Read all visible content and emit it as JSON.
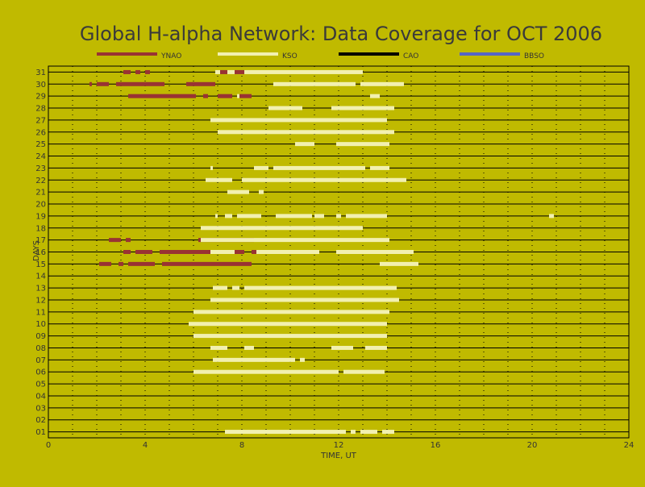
{
  "colors": {
    "background": "#c0ba00",
    "YNAO": "#993333",
    "KSO": "#f2f0b0",
    "CAO": "#000000",
    "BBSO": "#5566c6"
  },
  "chart_data": {
    "type": "bar",
    "title": "Global H-alpha Network: Data Coverage for OCT 2006",
    "xlabel": "TIME, UT",
    "ylabel": "DAYS",
    "xlim": [
      0,
      24
    ],
    "xticks": [
      0,
      4,
      8,
      12,
      16,
      20,
      24
    ],
    "xtick_labels": [
      "0",
      "4",
      "8",
      "12",
      "16",
      "20",
      "24"
    ],
    "ylim": [
      0.5,
      31.5
    ],
    "yticks": [
      1,
      2,
      3,
      4,
      5,
      6,
      7,
      8,
      9,
      10,
      11,
      12,
      13,
      14,
      15,
      16,
      17,
      18,
      19,
      20,
      21,
      22,
      23,
      24,
      25,
      26,
      27,
      28,
      29,
      30,
      31
    ],
    "ytick_labels": [
      "01",
      "02",
      "03",
      "04",
      "05",
      "06",
      "07",
      "08",
      "09",
      "10",
      "11",
      "12",
      "13",
      "14",
      "15",
      "16",
      "17",
      "18",
      "19",
      "20",
      "21",
      "22",
      "23",
      "24",
      "25",
      "26",
      "27",
      "28",
      "29",
      "30",
      "31"
    ],
    "grid": true,
    "legend_position": "top",
    "series": [
      {
        "name": "YNAO",
        "color": "#993333",
        "intervals": [
          {
            "day": 31,
            "start": 3.1,
            "end": 3.4
          },
          {
            "day": 31,
            "start": 3.6,
            "end": 3.8
          },
          {
            "day": 31,
            "start": 4.0,
            "end": 4.2
          },
          {
            "day": 31,
            "start": 7.1,
            "end": 7.4
          },
          {
            "day": 31,
            "start": 7.7,
            "end": 8.1
          },
          {
            "day": 30,
            "start": 1.7,
            "end": 1.8
          },
          {
            "day": 30,
            "start": 2.0,
            "end": 2.5
          },
          {
            "day": 30,
            "start": 2.8,
            "end": 4.8
          },
          {
            "day": 30,
            "start": 5.7,
            "end": 6.9
          },
          {
            "day": 29,
            "start": 3.3,
            "end": 6.1
          },
          {
            "day": 29,
            "start": 6.4,
            "end": 6.6
          },
          {
            "day": 29,
            "start": 7.0,
            "end": 7.6
          },
          {
            "day": 29,
            "start": 7.9,
            "end": 8.4
          },
          {
            "day": 17,
            "start": 2.5,
            "end": 3.0
          },
          {
            "day": 17,
            "start": 3.2,
            "end": 3.4
          },
          {
            "day": 17,
            "start": 6.2,
            "end": 8.5
          },
          {
            "day": 16,
            "start": 3.1,
            "end": 3.4
          },
          {
            "day": 16,
            "start": 3.6,
            "end": 4.3
          },
          {
            "day": 16,
            "start": 4.6,
            "end": 8.1
          },
          {
            "day": 16,
            "start": 8.4,
            "end": 8.6
          },
          {
            "day": 15,
            "start": 2.1,
            "end": 2.6
          },
          {
            "day": 15,
            "start": 2.9,
            "end": 3.1
          },
          {
            "day": 15,
            "start": 3.3,
            "end": 4.4
          },
          {
            "day": 15,
            "start": 4.7,
            "end": 8.4
          }
        ]
      },
      {
        "name": "KSO",
        "color": "#f2f0b0",
        "intervals": [
          {
            "day": 31,
            "start": 6.9,
            "end": 7.1
          },
          {
            "day": 31,
            "start": 7.4,
            "end": 7.7
          },
          {
            "day": 31,
            "start": 8.1,
            "end": 13.0
          },
          {
            "day": 30,
            "start": 9.3,
            "end": 12.7
          },
          {
            "day": 30,
            "start": 12.9,
            "end": 14.7
          },
          {
            "day": 29,
            "start": 7.8,
            "end": 7.9
          },
          {
            "day": 29,
            "start": 13.3,
            "end": 13.7
          },
          {
            "day": 28,
            "start": 9.1,
            "end": 10.5
          },
          {
            "day": 28,
            "start": 11.7,
            "end": 14.3
          },
          {
            "day": 27,
            "start": 6.7,
            "end": 14.0
          },
          {
            "day": 26,
            "start": 7.0,
            "end": 14.3
          },
          {
            "day": 25,
            "start": 10.2,
            "end": 11.0
          },
          {
            "day": 25,
            "start": 11.9,
            "end": 14.1
          },
          {
            "day": 23,
            "start": 6.7,
            "end": 6.8
          },
          {
            "day": 23,
            "start": 8.5,
            "end": 9.1
          },
          {
            "day": 23,
            "start": 9.3,
            "end": 13.1
          },
          {
            "day": 23,
            "start": 13.3,
            "end": 14.1
          },
          {
            "day": 22,
            "start": 6.5,
            "end": 7.6
          },
          {
            "day": 22,
            "start": 8.0,
            "end": 14.8
          },
          {
            "day": 21,
            "start": 7.4,
            "end": 8.3
          },
          {
            "day": 21,
            "start": 8.7,
            "end": 8.9
          },
          {
            "day": 19,
            "start": 6.9,
            "end": 7.0
          },
          {
            "day": 19,
            "start": 7.3,
            "end": 7.6
          },
          {
            "day": 19,
            "start": 7.8,
            "end": 8.8
          },
          {
            "day": 19,
            "start": 9.4,
            "end": 10.9
          },
          {
            "day": 19,
            "start": 11.0,
            "end": 11.4
          },
          {
            "day": 19,
            "start": 11.9,
            "end": 12.1
          },
          {
            "day": 19,
            "start": 12.3,
            "end": 14.0
          },
          {
            "day": 19,
            "start": 20.7,
            "end": 20.9
          },
          {
            "day": 18,
            "start": 6.3,
            "end": 13.0
          },
          {
            "day": 17,
            "start": 6.3,
            "end": 14.1
          },
          {
            "day": 16,
            "start": 6.7,
            "end": 7.7
          },
          {
            "day": 16,
            "start": 8.6,
            "end": 11.2
          },
          {
            "day": 16,
            "start": 11.9,
            "end": 15.1
          },
          {
            "day": 15,
            "start": 13.7,
            "end": 15.3
          },
          {
            "day": 13,
            "start": 6.8,
            "end": 7.4
          },
          {
            "day": 13,
            "start": 7.6,
            "end": 7.9
          },
          {
            "day": 13,
            "start": 8.1,
            "end": 14.4
          },
          {
            "day": 12,
            "start": 6.7,
            "end": 14.5
          },
          {
            "day": 11,
            "start": 6.0,
            "end": 14.1
          },
          {
            "day": 10,
            "start": 5.8,
            "end": 14.0
          },
          {
            "day": 9,
            "start": 6.0,
            "end": 14.0
          },
          {
            "day": 8,
            "start": 6.7,
            "end": 7.4
          },
          {
            "day": 8,
            "start": 8.1,
            "end": 8.5
          },
          {
            "day": 8,
            "start": 11.7,
            "end": 12.6
          },
          {
            "day": 8,
            "start": 13.1,
            "end": 14.0
          },
          {
            "day": 7,
            "start": 6.8,
            "end": 10.2
          },
          {
            "day": 7,
            "start": 10.4,
            "end": 10.6
          },
          {
            "day": 6,
            "start": 6.0,
            "end": 12.0
          },
          {
            "day": 6,
            "start": 12.2,
            "end": 13.9
          },
          {
            "day": 1,
            "start": 7.3,
            "end": 12.3
          },
          {
            "day": 1,
            "start": 12.5,
            "end": 12.7
          },
          {
            "day": 1,
            "start": 12.9,
            "end": 13.6
          },
          {
            "day": 1,
            "start": 13.8,
            "end": 14.3
          }
        ]
      },
      {
        "name": "CAO",
        "color": "#000000",
        "intervals": []
      },
      {
        "name": "BBSO",
        "color": "#5566c6",
        "intervals": []
      }
    ]
  }
}
